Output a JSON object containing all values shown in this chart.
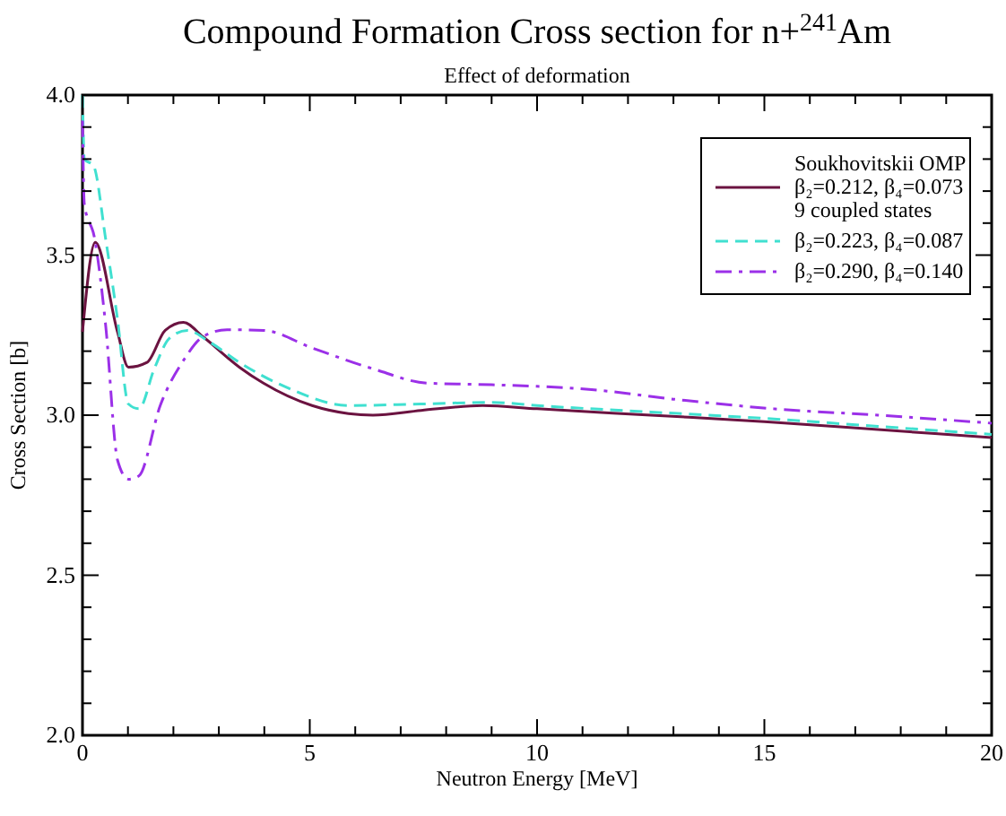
{
  "chart_data": {
    "type": "line",
    "title": "Compound Formation Cross section for n+$^{241}$Am",
    "subtitle": "Effect of deformation",
    "xlabel": "Neutron Energy [MeV]",
    "ylabel": "Cross Section [b]",
    "xlim": [
      0,
      20
    ],
    "ylim": [
      2.0,
      4.0
    ],
    "xticks": [
      0,
      {
        "value": 1,
        "label": null
      },
      {
        "value": 2,
        "label": null
      },
      {
        "value": 3,
        "label": null
      },
      {
        "value": 4,
        "label": null
      },
      5,
      {
        "value": 6,
        "label": null
      },
      {
        "value": 7,
        "label": null
      },
      {
        "value": 8,
        "label": null
      },
      {
        "value": 9,
        "label": null
      },
      10,
      {
        "value": 11,
        "label": null
      },
      {
        "value": 12,
        "label": null
      },
      {
        "value": 13,
        "label": null
      },
      {
        "value": 14,
        "label": null
      },
      15,
      {
        "value": 16,
        "label": null
      },
      {
        "value": 17,
        "label": null
      },
      {
        "value": 18,
        "label": null
      },
      {
        "value": 19,
        "label": null
      },
      20
    ],
    "yticks": [
      {
        "value": 2.0,
        "label": "2.0"
      },
      {
        "value": 2.1,
        "label": null
      },
      {
        "value": 2.2,
        "label": null
      },
      {
        "value": 2.3,
        "label": null
      },
      {
        "value": 2.4,
        "label": null
      },
      {
        "value": 2.5,
        "label": "2.5"
      },
      {
        "value": 2.6,
        "label": null
      },
      {
        "value": 2.7,
        "label": null
      },
      {
        "value": 2.8,
        "label": null
      },
      {
        "value": 2.9,
        "label": null
      },
      {
        "value": 3.0,
        "label": "3.0"
      },
      {
        "value": 3.1,
        "label": null
      },
      {
        "value": 3.2,
        "label": null
      },
      {
        "value": 3.3,
        "label": null
      },
      {
        "value": 3.4,
        "label": null
      },
      {
        "value": 3.5,
        "label": "3.5"
      },
      {
        "value": 3.6,
        "label": null
      },
      {
        "value": 3.7,
        "label": null
      },
      {
        "value": 3.8,
        "label": null
      },
      {
        "value": 3.9,
        "label": null
      },
      {
        "value": 4.0,
        "label": "4.0"
      }
    ],
    "grid": false,
    "legend": "top right",
    "marker": "none",
    "series": [
      {
        "name": "Soukhovitskii OMP\nβ₂=0.212, β₄=0.073\n9 coupled states",
        "color": "#6b1340",
        "line_style": "solid",
        "x": [
          0,
          0.28,
          0.77,
          1.01,
          1.42,
          1.82,
          2.22,
          2.65,
          3.45,
          3.98,
          5.05,
          5.85,
          6.39,
          7.45,
          8.8,
          10,
          12.5,
          15,
          17.5,
          20
        ],
        "values": [
          3.26,
          3.54,
          3.26,
          3.15,
          3.165,
          3.265,
          3.29,
          3.245,
          3.15,
          3.1,
          3.03,
          3.005,
          3.0,
          3.015,
          3.03,
          3.02,
          3.0,
          2.98,
          2.955,
          2.93
        ]
      },
      {
        "name": "β₂=0.223, β₄=0.087",
        "color": "#40e0d0",
        "line_style": "dashed",
        "x": [
          0,
          0.04,
          0.24,
          0.51,
          0.77,
          1.01,
          1.24,
          1.58,
          1.91,
          2.31,
          2.78,
          3.45,
          4.52,
          5.85,
          7.45,
          9,
          10,
          12.5,
          15,
          17.5,
          20
        ],
        "values": [
          4.0,
          3.8,
          3.78,
          3.55,
          3.3,
          3.035,
          3.02,
          3.145,
          3.24,
          3.265,
          3.23,
          3.165,
          3.085,
          3.03,
          3.035,
          3.04,
          3.03,
          3.01,
          2.99,
          2.965,
          2.94
        ]
      },
      {
        "name": "β₂=0.290, β₄=0.140",
        "color": "#9b30e8",
        "line_style": "dashdot",
        "x": [
          0,
          0.04,
          0.27,
          0.51,
          0.77,
          1.01,
          1.24,
          1.71,
          2.24,
          2.65,
          3.18,
          3.98,
          5.05,
          6.39,
          7.59,
          9,
          11.2,
          13,
          15.2,
          17.5,
          20
        ],
        "values": [
          3.92,
          3.66,
          3.55,
          3.28,
          2.86,
          2.8,
          2.81,
          3.03,
          3.175,
          3.245,
          3.267,
          3.265,
          3.21,
          3.145,
          3.1,
          3.095,
          3.08,
          3.05,
          3.02,
          3.0,
          2.975
        ]
      }
    ]
  }
}
